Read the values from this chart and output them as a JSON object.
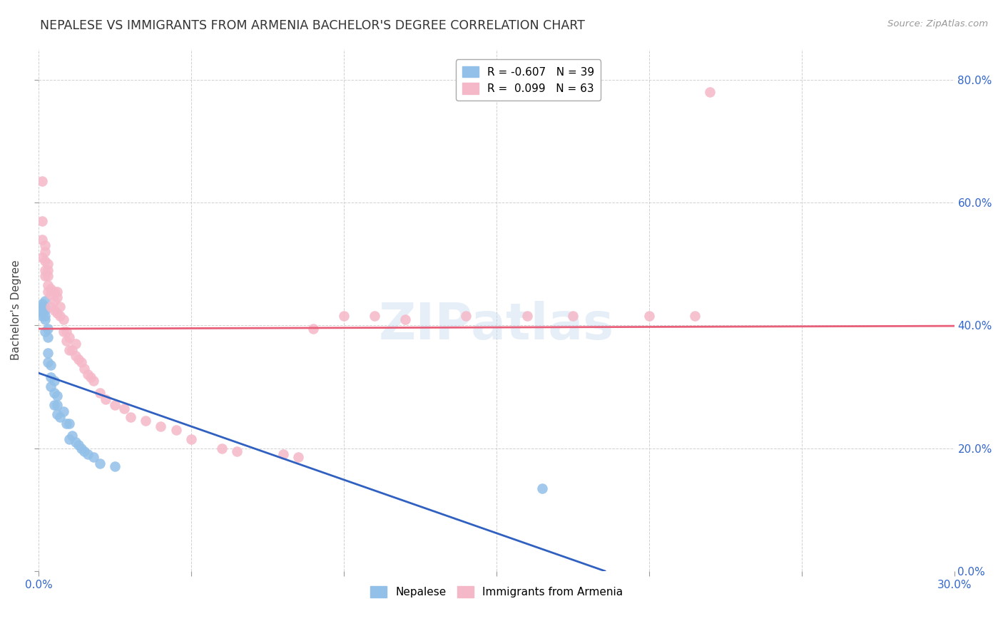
{
  "title": "NEPALESE VS IMMIGRANTS FROM ARMENIA BACHELOR'S DEGREE CORRELATION CHART",
  "source": "Source: ZipAtlas.com",
  "ylabel": "Bachelor's Degree",
  "xlim": [
    0.0,
    0.3
  ],
  "ylim": [
    0.0,
    0.85
  ],
  "legend_r_blue": "-0.607",
  "legend_n_blue": "39",
  "legend_r_pink": "0.099",
  "legend_n_pink": "63",
  "watermark": "ZIPatlas",
  "blue_color": "#92C0E8",
  "pink_color": "#F5B8C8",
  "blue_line_color": "#3060C0",
  "pink_line_color": "#E8607A",
  "nepalese_x": [
    0.001,
    0.001,
    0.001,
    0.001,
    0.001,
    0.002,
    0.002,
    0.002,
    0.002,
    0.002,
    0.002,
    0.003,
    0.003,
    0.003,
    0.003,
    0.004,
    0.004,
    0.004,
    0.005,
    0.005,
    0.005,
    0.006,
    0.006,
    0.006,
    0.007,
    0.008,
    0.009,
    0.01,
    0.01,
    0.011,
    0.012,
    0.013,
    0.014,
    0.015,
    0.016,
    0.018,
    0.02,
    0.025,
    0.165
  ],
  "nepalese_y": [
    0.435,
    0.43,
    0.425,
    0.42,
    0.415,
    0.44,
    0.43,
    0.425,
    0.415,
    0.41,
    0.39,
    0.395,
    0.38,
    0.355,
    0.34,
    0.335,
    0.315,
    0.3,
    0.31,
    0.29,
    0.27,
    0.285,
    0.27,
    0.255,
    0.25,
    0.26,
    0.24,
    0.24,
    0.215,
    0.22,
    0.21,
    0.205,
    0.2,
    0.195,
    0.19,
    0.185,
    0.175,
    0.17,
    0.135
  ],
  "armenia_x": [
    0.001,
    0.001,
    0.001,
    0.001,
    0.002,
    0.002,
    0.002,
    0.002,
    0.002,
    0.003,
    0.003,
    0.003,
    0.003,
    0.003,
    0.004,
    0.004,
    0.004,
    0.005,
    0.005,
    0.005,
    0.006,
    0.006,
    0.006,
    0.007,
    0.007,
    0.008,
    0.008,
    0.009,
    0.009,
    0.01,
    0.01,
    0.011,
    0.012,
    0.012,
    0.013,
    0.014,
    0.015,
    0.016,
    0.017,
    0.018,
    0.02,
    0.022,
    0.025,
    0.028,
    0.03,
    0.035,
    0.04,
    0.045,
    0.05,
    0.06,
    0.065,
    0.08,
    0.085,
    0.09,
    0.1,
    0.11,
    0.12,
    0.14,
    0.16,
    0.175,
    0.2,
    0.215,
    0.22
  ],
  "armenia_y": [
    0.635,
    0.57,
    0.54,
    0.51,
    0.53,
    0.52,
    0.505,
    0.49,
    0.48,
    0.5,
    0.49,
    0.48,
    0.465,
    0.455,
    0.46,
    0.45,
    0.43,
    0.455,
    0.44,
    0.425,
    0.455,
    0.445,
    0.42,
    0.43,
    0.415,
    0.41,
    0.39,
    0.39,
    0.375,
    0.38,
    0.36,
    0.36,
    0.37,
    0.35,
    0.345,
    0.34,
    0.33,
    0.32,
    0.315,
    0.31,
    0.29,
    0.28,
    0.27,
    0.265,
    0.25,
    0.245,
    0.235,
    0.23,
    0.215,
    0.2,
    0.195,
    0.19,
    0.185,
    0.395,
    0.415,
    0.415,
    0.41,
    0.415,
    0.415,
    0.415,
    0.415,
    0.415,
    0.78
  ]
}
